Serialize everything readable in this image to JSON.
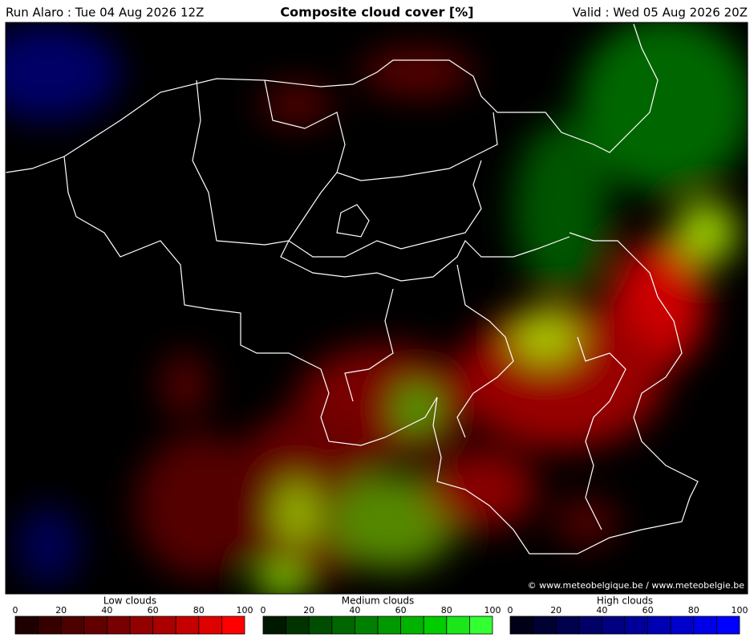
{
  "header": {
    "left": "Run Alaro : Tue 04 Aug 2026 12Z",
    "title": "Composite cloud cover [%]",
    "right": "Valid : Wed 05 Aug 2026 20Z"
  },
  "map": {
    "credit": "© www.meteobelgique.be / www.meteobelgie.be"
  },
  "legends": [
    {
      "label": "Low clouds",
      "ticks": [
        0,
        20,
        40,
        60,
        80,
        100
      ],
      "colors": [
        "#1e0000",
        "#360000",
        "#4c0000",
        "#620000",
        "#790000",
        "#920000",
        "#aa0000",
        "#c40000",
        "#df0000",
        "#ff0000"
      ]
    },
    {
      "label": "Medium clouds",
      "ticks": [
        0,
        20,
        40,
        60,
        80,
        100
      ],
      "colors": [
        "#001800",
        "#003300",
        "#004d00",
        "#006600",
        "#008000",
        "#009900",
        "#00b300",
        "#00cc00",
        "#1ae61a",
        "#33ff33"
      ]
    },
    {
      "label": "High clouds",
      "ticks": [
        0,
        20,
        40,
        60,
        80,
        100
      ],
      "colors": [
        "#000018",
        "#000033",
        "#00004d",
        "#000066",
        "#000080",
        "#000099",
        "#0000b3",
        "#0000cc",
        "#0000e6",
        "#0000ff"
      ]
    }
  ]
}
